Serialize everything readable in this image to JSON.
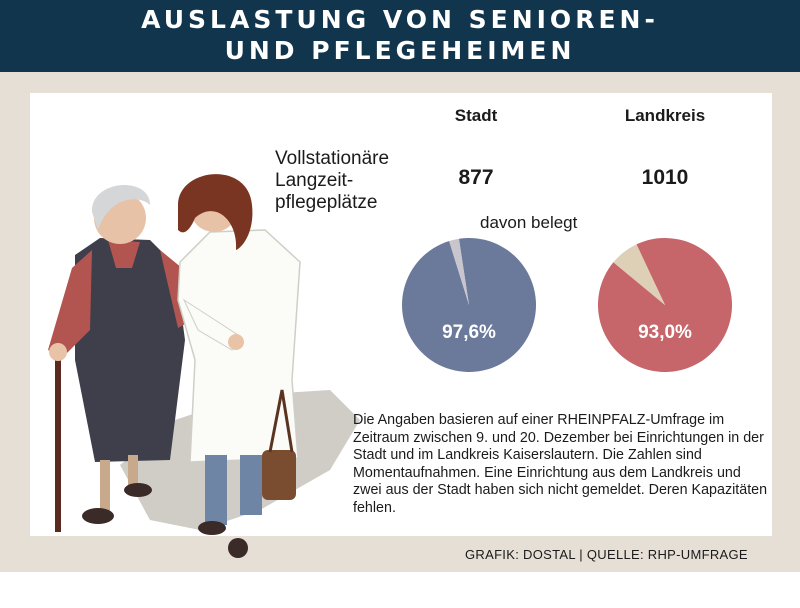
{
  "header": {
    "title_line1": "AUSLASTUNG VON SENIOREN-",
    "title_line2": "UND PFLEGEHEIMEN"
  },
  "table": {
    "row_label": "Vollstationäre Langzeit-pflegeplätze",
    "columns": [
      {
        "label": "Stadt",
        "value": "877"
      },
      {
        "label": "Landkreis",
        "value": "1010"
      }
    ],
    "subtitle": "davon belegt"
  },
  "chart_data": {
    "type": "pie",
    "unit": "%",
    "charts": [
      {
        "category": "Stadt",
        "belegt": 97.6,
        "label": "97,6%",
        "slices": [
          {
            "value": 97.6,
            "color": "#6b7a9a"
          },
          {
            "value": 2.4,
            "color": "#c8c6cc"
          }
        ]
      },
      {
        "category": "Landkreis",
        "belegt": 93.0,
        "label": "93,0%",
        "slices": [
          {
            "value": 93.0,
            "color": "#c6666a"
          },
          {
            "value": 7.0,
            "color": "#ddd0b6"
          }
        ]
      }
    ]
  },
  "note": "Die Angaben basieren auf einer RHEINPFALZ-Umfrage im Zeitraum zwischen 9. und 20. Dezember bei Einrichtungen in der Stadt und im Landkreis Kaiserslautern. Die Zahlen sind Momentaufnahmen. Eine Einrichtung aus dem Landkreis und zwei aus der Stadt haben sich nicht gemeldet. Deren Kapazitäten fehlen.",
  "credit": "GRAFIK: DOSTAL | QUELLE: RHP-UMFRAGE",
  "colors": {
    "header_bg": "#12354e",
    "frame_bg": "#e6dfd6"
  }
}
